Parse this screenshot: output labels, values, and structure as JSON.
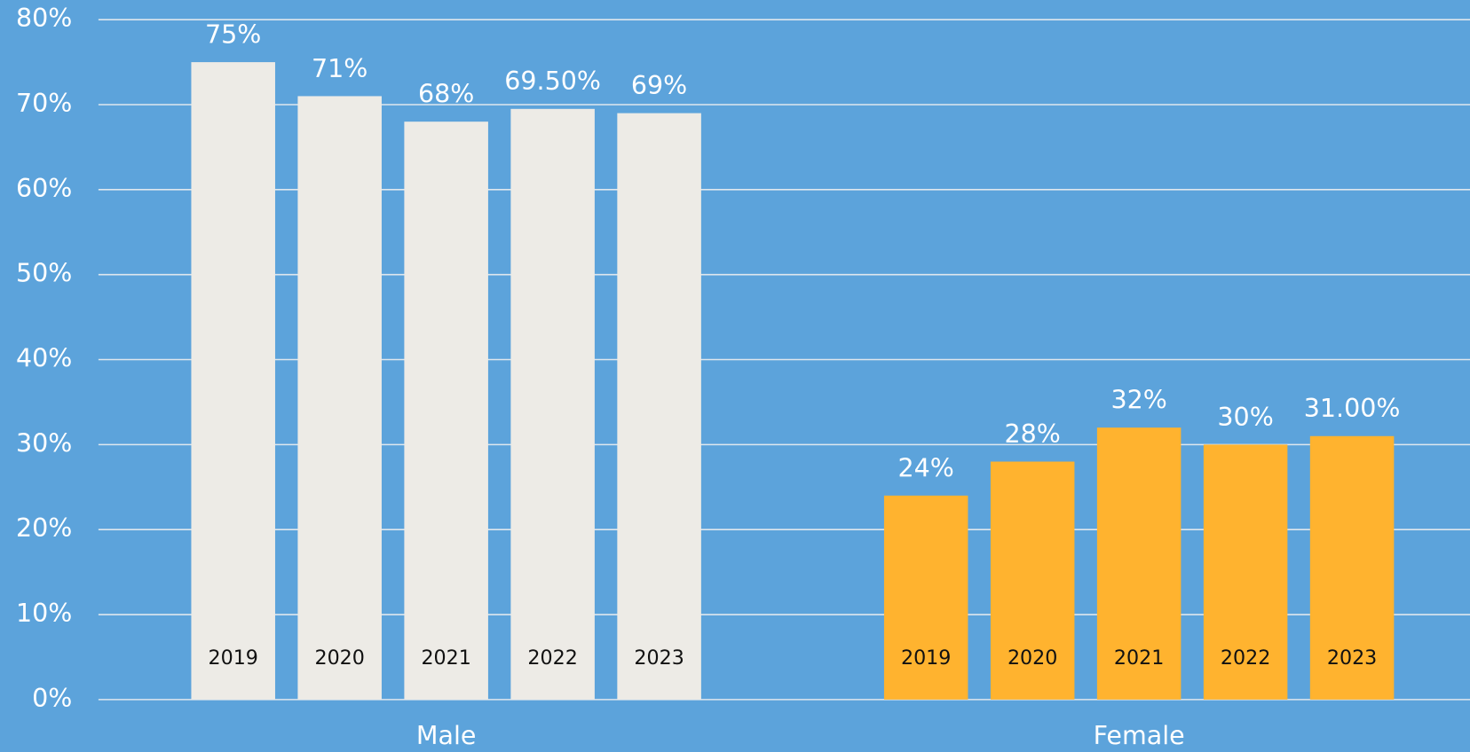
{
  "chart_data": {
    "type": "bar",
    "groups": [
      {
        "name": "Male",
        "color": "#edebe6",
        "categories": [
          "2019",
          "2020",
          "2021",
          "2022",
          "2023"
        ],
        "values": [
          75,
          71,
          68,
          69.5,
          69
        ],
        "value_labels": [
          "75%",
          "71%",
          "68%",
          "69.50%",
          "69%"
        ]
      },
      {
        "name": "Female",
        "color": "#ffb32f",
        "categories": [
          "2019",
          "2020",
          "2021",
          "2022",
          "2023"
        ],
        "values": [
          24,
          28,
          32,
          30,
          31
        ],
        "value_labels": [
          "24%",
          "28%",
          "32%",
          "30%",
          "31.00%"
        ]
      }
    ],
    "ylim": [
      0,
      80
    ],
    "yticks": [
      {
        "value": 0,
        "label": "0%"
      },
      {
        "value": 10,
        "label": "10%"
      },
      {
        "value": 20,
        "label": "20%"
      },
      {
        "value": 30,
        "label": "30%"
      },
      {
        "value": 40,
        "label": "40%"
      },
      {
        "value": 50,
        "label": "50%"
      },
      {
        "value": 60,
        "label": "60%"
      },
      {
        "value": 70,
        "label": "70%"
      },
      {
        "value": 80,
        "label": "80%"
      }
    ],
    "grid": true
  }
}
